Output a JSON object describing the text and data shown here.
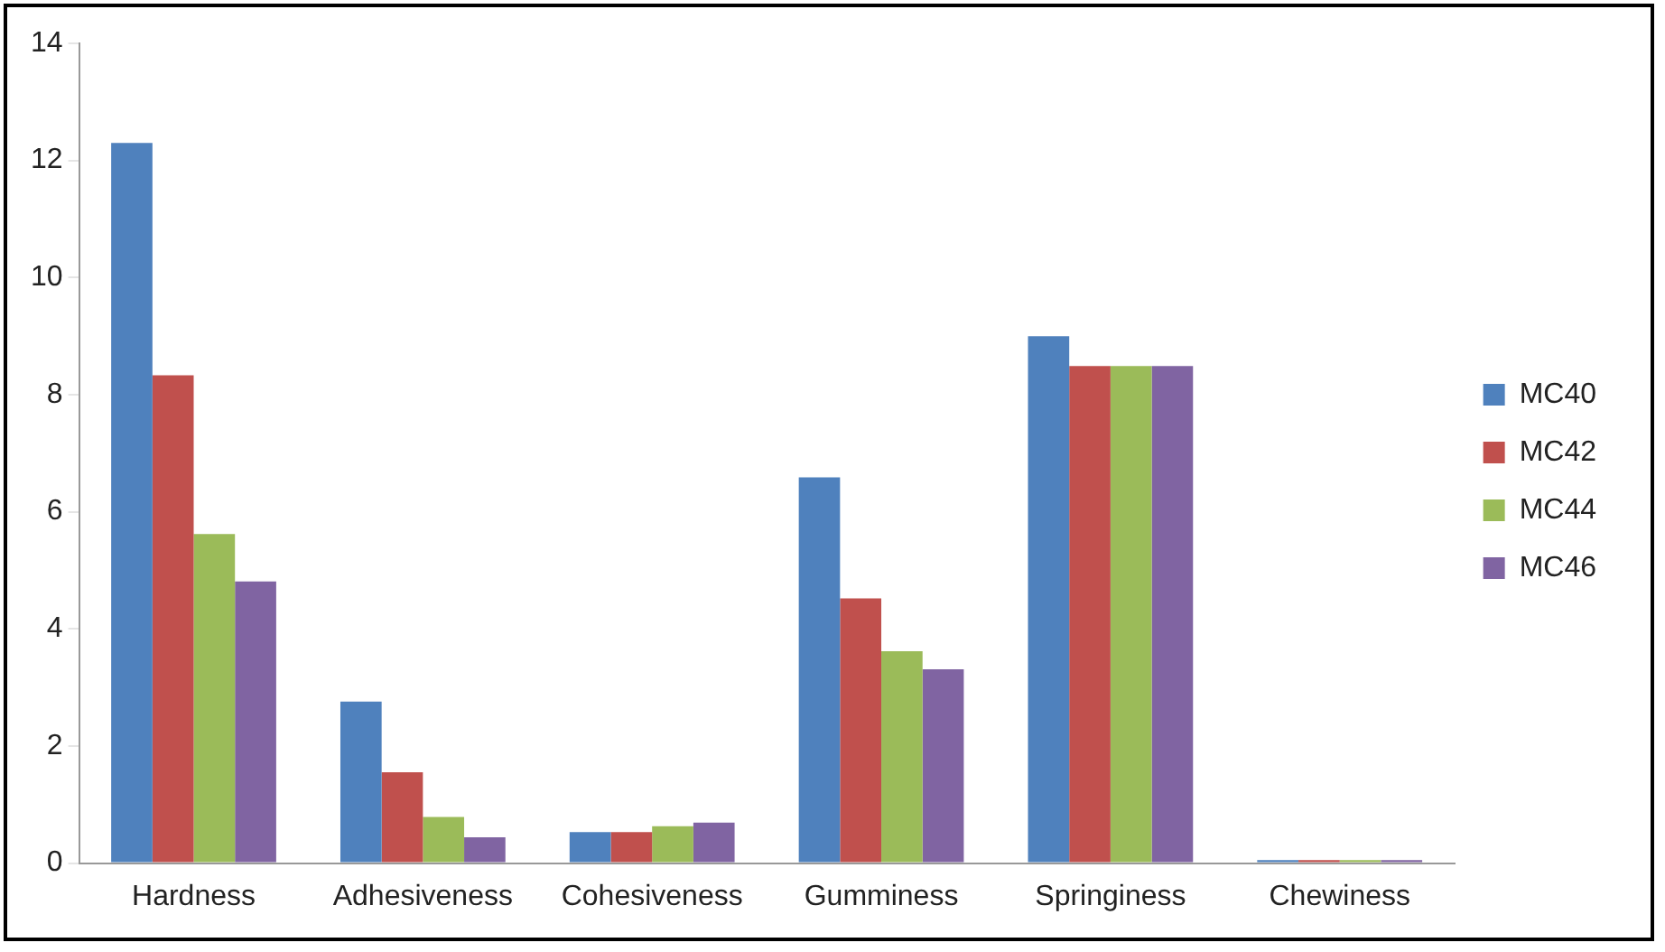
{
  "chart_data": {
    "type": "bar",
    "categories": [
      "Hardness",
      "Adhesiveness",
      "Cohesiveness",
      "Gumminess",
      "Springiness",
      "Chewiness"
    ],
    "series": [
      {
        "name": "MC40",
        "color": "#4f81bd",
        "values": [
          12.3,
          2.76,
          0.53,
          6.59,
          9.0,
          0.05
        ]
      },
      {
        "name": "MC42",
        "color": "#c0504d",
        "values": [
          8.33,
          1.55,
          0.53,
          4.52,
          8.49,
          0.05
        ]
      },
      {
        "name": "MC44",
        "color": "#9bbb59",
        "values": [
          5.62,
          0.79,
          0.63,
          3.62,
          8.49,
          0.05
        ]
      },
      {
        "name": "MC46",
        "color": "#8064a2",
        "values": [
          4.81,
          0.44,
          0.69,
          3.31,
          8.49,
          0.05
        ]
      }
    ],
    "ylim": [
      0,
      14
    ],
    "yticks": [
      0,
      2,
      4,
      6,
      8,
      10,
      12,
      14
    ],
    "grid": false,
    "legend": "right"
  }
}
